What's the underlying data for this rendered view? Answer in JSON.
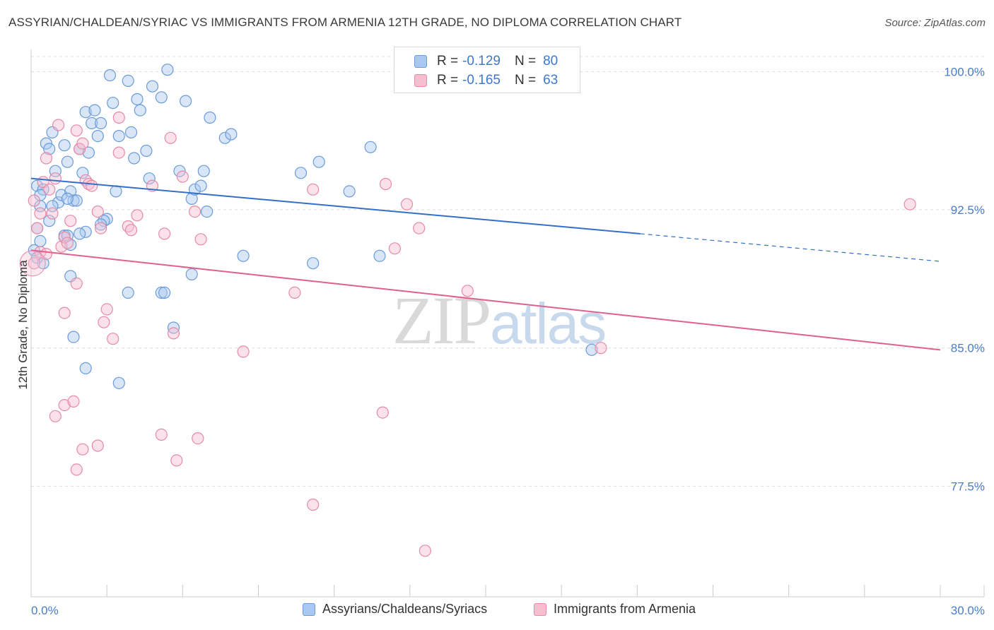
{
  "header": {
    "title": "ASSYRIAN/CHALDEAN/SYRIAC VS IMMIGRANTS FROM ARMENIA 12TH GRADE, NO DIPLOMA CORRELATION CHART",
    "source": "Source: ZipAtlas.com"
  },
  "watermark": {
    "part1": "ZIP",
    "part2": "atlas"
  },
  "legend": {
    "series1": {
      "r_label": "R =",
      "r_value": "-0.129",
      "n_label": "N =",
      "n_value": "80"
    },
    "series2": {
      "r_label": "R =",
      "r_value": "-0.165",
      "n_label": "N =",
      "n_value": "63"
    }
  },
  "bottom_legend": {
    "series1": "Assyrians/Chaldeans/Syriacs",
    "series2": "Immigrants from Armenia"
  },
  "colors": {
    "blue_fill": "#a9c8f0",
    "blue_stroke": "#6a9bd8",
    "blue_line": "#3370c8",
    "pink_fill": "#f6bfd0",
    "pink_stroke": "#e58aa8",
    "pink_line": "#e0608f",
    "grid": "#dddddd",
    "tick_text": "#4a7cc9"
  },
  "chart_data": {
    "type": "scatter",
    "title": "ASSYRIAN/CHALDEAN/SYRIAC VS IMMIGRANTS FROM ARMENIA 12TH GRADE, NO DIPLOMA CORRELATION CHART",
    "xlabel": "",
    "ylabel": "12th Grade, No Diploma",
    "xlim": [
      0,
      30
    ],
    "ylim": [
      71.5,
      101.2
    ],
    "x_tick_labels": [
      "0.0%",
      "30.0%"
    ],
    "y_ticks": [
      77.5,
      85.0,
      92.5,
      100.0
    ],
    "y_tick_labels": [
      "77.5%",
      "85.0%",
      "92.5%",
      "100.0%"
    ],
    "grid": true,
    "series": [
      {
        "name": "Assyrians/Chaldeans/Syriacs",
        "color": "#6a9bd8",
        "trend": {
          "x0": 0,
          "y0": 94.2,
          "x1": 20.1,
          "y1": 91.2,
          "dash_to_x": 30,
          "dash_to_y": 89.7
        },
        "points": [
          [
            0.2,
            93.8
          ],
          [
            0.3,
            92.7
          ],
          [
            0.4,
            93.6
          ],
          [
            0.2,
            91.5
          ],
          [
            0.3,
            90.8
          ],
          [
            0.1,
            90.3
          ],
          [
            0.2,
            89.9
          ],
          [
            0.5,
            96.1
          ],
          [
            0.6,
            95.8
          ],
          [
            0.7,
            96.7
          ],
          [
            0.8,
            94.6
          ],
          [
            0.9,
            92.9
          ],
          [
            1.0,
            93.3
          ],
          [
            0.6,
            91.9
          ],
          [
            1.1,
            96.0
          ],
          [
            1.2,
            95.1
          ],
          [
            1.3,
            93.5
          ],
          [
            1.4,
            93.0
          ],
          [
            1.5,
            93.0
          ],
          [
            1.6,
            95.8
          ],
          [
            1.7,
            94.5
          ],
          [
            1.8,
            97.8
          ],
          [
            1.9,
            95.6
          ],
          [
            2.0,
            97.2
          ],
          [
            2.1,
            97.9
          ],
          [
            2.2,
            96.5
          ],
          [
            2.3,
            97.2
          ],
          [
            2.5,
            92.0
          ],
          [
            2.6,
            99.8
          ],
          [
            2.7,
            98.3
          ],
          [
            2.8,
            93.5
          ],
          [
            2.9,
            96.5
          ],
          [
            3.2,
            99.5
          ],
          [
            3.3,
            96.7
          ],
          [
            3.4,
            95.3
          ],
          [
            3.5,
            98.5
          ],
          [
            3.6,
            97.9
          ],
          [
            3.8,
            95.7
          ],
          [
            3.9,
            94.2
          ],
          [
            4.0,
            99.2
          ],
          [
            4.3,
            98.6
          ],
          [
            4.5,
            100.1
          ],
          [
            4.9,
            94.6
          ],
          [
            5.1,
            98.4
          ],
          [
            5.3,
            93.1
          ],
          [
            5.4,
            93.6
          ],
          [
            5.6,
            93.8
          ],
          [
            5.7,
            94.6
          ],
          [
            5.8,
            92.4
          ],
          [
            5.9,
            97.5
          ],
          [
            6.4,
            96.4
          ],
          [
            6.6,
            96.6
          ],
          [
            7.0,
            90.0
          ],
          [
            8.9,
            94.5
          ],
          [
            9.3,
            89.6
          ],
          [
            9.5,
            95.1
          ],
          [
            10.5,
            93.5
          ],
          [
            11.2,
            95.9
          ],
          [
            11.5,
            90.0
          ],
          [
            1.3,
            90.6
          ],
          [
            1.1,
            91.1
          ],
          [
            1.2,
            91.1
          ],
          [
            1.8,
            91.3
          ],
          [
            1.3,
            88.9
          ],
          [
            3.2,
            88.0
          ],
          [
            4.3,
            88.0
          ],
          [
            4.4,
            88.0
          ],
          [
            4.7,
            86.1
          ],
          [
            1.4,
            85.6
          ],
          [
            1.8,
            83.9
          ],
          [
            2.9,
            83.1
          ],
          [
            5.3,
            89.0
          ],
          [
            2.4,
            91.9
          ],
          [
            0.7,
            92.7
          ],
          [
            1.2,
            93.1
          ],
          [
            1.6,
            91.2
          ],
          [
            2.3,
            91.7
          ],
          [
            0.3,
            93.3
          ],
          [
            18.5,
            84.9
          ],
          [
            0.4,
            89.6
          ]
        ]
      },
      {
        "name": "Immigrants from Armenia",
        "color": "#e58aa8",
        "trend": {
          "x0": 0,
          "y0": 90.3,
          "x1": 30,
          "y1": 84.9
        },
        "points": [
          [
            0.1,
            89.6
          ],
          [
            0.2,
            91.5
          ],
          [
            0.3,
            92.3
          ],
          [
            0.4,
            94.0
          ],
          [
            0.5,
            95.3
          ],
          [
            0.6,
            93.6
          ],
          [
            0.7,
            92.3
          ],
          [
            0.8,
            94.2
          ],
          [
            0.9,
            97.1
          ],
          [
            1.0,
            90.5
          ],
          [
            1.1,
            91.0
          ],
          [
            1.3,
            91.9
          ],
          [
            1.5,
            96.8
          ],
          [
            1.6,
            95.8
          ],
          [
            1.7,
            96.1
          ],
          [
            1.8,
            94.1
          ],
          [
            1.9,
            93.9
          ],
          [
            2.0,
            93.8
          ],
          [
            2.2,
            92.4
          ],
          [
            2.3,
            91.5
          ],
          [
            2.5,
            87.1
          ],
          [
            2.9,
            95.6
          ],
          [
            2.9,
            97.5
          ],
          [
            3.2,
            91.6
          ],
          [
            3.3,
            91.4
          ],
          [
            3.5,
            92.2
          ],
          [
            4.0,
            93.8
          ],
          [
            4.4,
            91.2
          ],
          [
            4.6,
            96.4
          ],
          [
            4.7,
            85.8
          ],
          [
            5.0,
            94.3
          ],
          [
            5.4,
            92.4
          ],
          [
            5.6,
            90.9
          ],
          [
            7.0,
            84.8
          ],
          [
            8.7,
            88.0
          ],
          [
            9.3,
            93.6
          ],
          [
            9.3,
            76.5
          ],
          [
            11.7,
            93.9
          ],
          [
            11.6,
            81.5
          ],
          [
            12.0,
            90.4
          ],
          [
            12.4,
            92.8
          ],
          [
            12.8,
            91.5
          ],
          [
            13.0,
            74.0
          ],
          [
            14.4,
            88.1
          ],
          [
            18.8,
            85.0
          ],
          [
            29.0,
            92.8
          ],
          [
            1.1,
            86.9
          ],
          [
            1.5,
            88.5
          ],
          [
            2.4,
            86.4
          ],
          [
            2.7,
            85.5
          ],
          [
            0.8,
            81.3
          ],
          [
            1.1,
            81.9
          ],
          [
            1.4,
            82.1
          ],
          [
            1.7,
            79.5
          ],
          [
            2.2,
            79.7
          ],
          [
            1.5,
            78.4
          ],
          [
            4.3,
            80.3
          ],
          [
            4.8,
            78.9
          ],
          [
            5.5,
            80.1
          ],
          [
            0.3,
            90.2
          ],
          [
            0.5,
            90.1
          ],
          [
            1.2,
            90.7
          ],
          [
            0.1,
            93.0
          ]
        ]
      }
    ]
  }
}
